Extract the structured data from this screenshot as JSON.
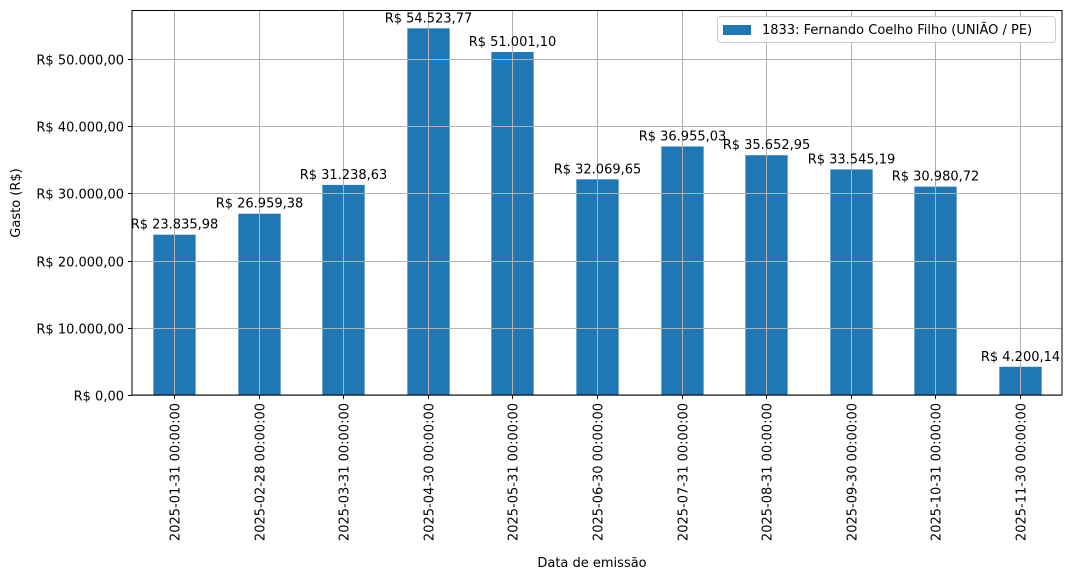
{
  "chart_data": {
    "type": "bar",
    "title": "",
    "xlabel": "Data de emissão",
    "ylabel": "Gasto (R$)",
    "ylim": [
      0,
      57250
    ],
    "grid": true,
    "legend_position": "upper right",
    "bar_color": "#1f77b4",
    "categories": [
      "2025-01-31 00:00:00",
      "2025-02-28 00:00:00",
      "2025-03-31 00:00:00",
      "2025-04-30 00:00:00",
      "2025-05-31 00:00:00",
      "2025-06-30 00:00:00",
      "2025-07-31 00:00:00",
      "2025-08-31 00:00:00",
      "2025-09-30 00:00:00",
      "2025-10-31 00:00:00",
      "2025-11-30 00:00:00"
    ],
    "series": [
      {
        "name": "1833: Fernando Coelho Filho (UNIÃO / PE)",
        "values": [
          23835.98,
          26959.38,
          31238.63,
          54523.77,
          51001.1,
          32069.65,
          36955.03,
          35652.95,
          33545.19,
          30980.72,
          4200.14
        ]
      }
    ],
    "value_labels": [
      "R$ 23.835,98",
      "R$ 26.959,38",
      "R$ 31.238,63",
      "R$ 54.523,77",
      "R$ 51.001,10",
      "R$ 32.069,65",
      "R$ 36.955,03",
      "R$ 35.652,95",
      "R$ 33.545,19",
      "R$ 30.980,72",
      "R$ 4.200,14"
    ],
    "y_ticks": [
      {
        "value": 0,
        "label": "R$ 0,00"
      },
      {
        "value": 10000,
        "label": "R$ 10.000,00"
      },
      {
        "value": 20000,
        "label": "R$ 20.000,00"
      },
      {
        "value": 30000,
        "label": "R$ 30.000,00"
      },
      {
        "value": 40000,
        "label": "R$ 40.000,00"
      },
      {
        "value": 50000,
        "label": "R$ 50.000,00"
      }
    ]
  }
}
